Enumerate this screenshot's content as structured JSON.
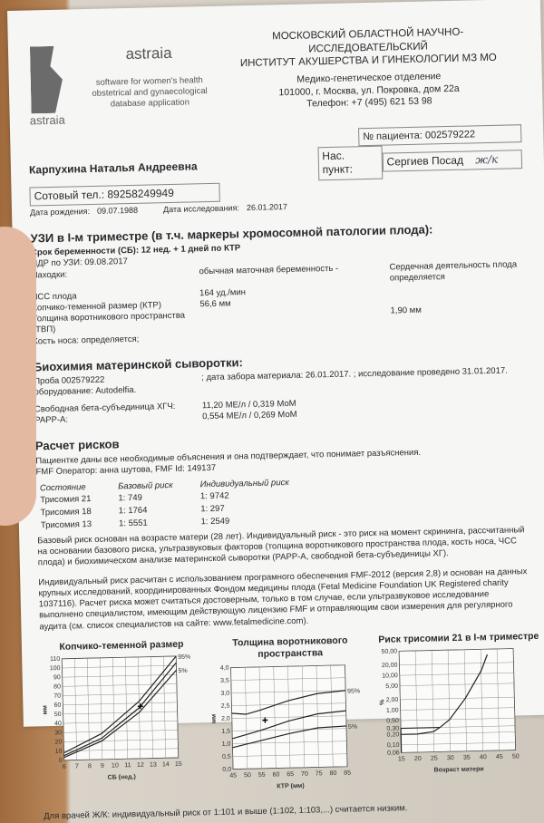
{
  "logo": {
    "name": "astraia",
    "tagline": [
      "software for women's health",
      "obstetrical and gynaecological",
      "database application"
    ],
    "mark_text": "astraia"
  },
  "institute": {
    "line1": "МОСКОВСКИЙ ОБЛАСТНОЙ НАУЧНО-ИССЛЕДОВАТЕЛЬСКИЙ",
    "line2": "ИНСТИТУТ АКУШЕРСТВА И ГИНЕКОЛОГИИ МЗ МО",
    "dept": "Медико-генетическое отделение",
    "address": "101000, г. Москва, ул. Покровка, дом 22а",
    "phone": "Телефон: +7 (495) 621 53 98"
  },
  "patient": {
    "number": "№ пациента: 002579222",
    "name": "Карпухина Наталья Андреевна",
    "city_label": "Нас. пункт:",
    "city": "Сергиев Посад",
    "handwritten": "ж/к",
    "phone": "Сотовый тел.: 89258249949",
    "dob_label": "Дата рождения:",
    "dob": "09.07.1988",
    "exam_label": "Дата исследования:",
    "exam_date": "26.01.2017"
  },
  "us": {
    "title": "УЗИ в I-м триместре (в т.ч. маркеры хромосомной патологии плода):",
    "ga": "Срок беременности (СБ):  12 нед. + 1 дней по КТР",
    "edd": "ПДР по УЗИ: 09.08.2017",
    "rows": [
      {
        "label": "Находки:",
        "value": "обычная маточная беременность -",
        "extra": "Сердечная деятельность плода  определяется"
      },
      {
        "label": "ЧСС плода",
        "value": "164 уд./мин",
        "extra": ""
      },
      {
        "label": "Копчико-теменной размер (КТР)",
        "value": "56,6 мм",
        "extra": ""
      },
      {
        "label": "Толщина воротникового пространства (ТВП)",
        "value": "",
        "extra": "1,90 мм"
      },
      {
        "label": "Кость носа: определяется;",
        "value": "",
        "extra": ""
      }
    ]
  },
  "bio": {
    "title": "Биохимия материнской сыворотки:",
    "sample": "Проба 002579222",
    "dates": "; дата забора материала: 26.01.2017. ; исследование проведено 31.01.2017.",
    "equipment": "оборудование: Autodelfia.",
    "rows": [
      {
        "label": "Свободная бета-субъединица ХГЧ:",
        "value": "11,20 МЕ/л  /  0,319 МоМ"
      },
      {
        "label": "PAPP-A:",
        "value": "0,554 МЕ/л  /  0,269 МоМ"
      }
    ]
  },
  "risk": {
    "title": "Расчет рисков",
    "consent": "Пациентке даны все необходимые объяснения и она подтверждает, что понимает разъяснения.",
    "operator": "FMF Оператор: анна шутова, FMF Id: 149137",
    "headers": [
      "Состояние",
      "Базовый риск",
      "Индивидуальный риск"
    ],
    "rows": [
      [
        "Трисомия 21",
        "1: 749",
        "1: 9742"
      ],
      [
        "Трисомия 18",
        "1: 1764",
        "1: 297"
      ],
      [
        "Трисомия 13",
        "1: 5551",
        "1: 2549"
      ]
    ],
    "note1": "Базовый риск основан на возрасте матери (28 лет). Индивидуальный риск - это риск на момент скрининга, рассчитанный на основании базового риска, ультразвуковых факторов (толщина воротникового пространства плода, кость носа, ЧСС плода) и биохимическом анализе материнской сыворотки (PAPP-A, свободной бета-субъединицы ХГ).",
    "note2": "Индивидуальный риск расчитан с использованием програмного обеспечения FMF-2012 (версия 2,8) и основан на данных крупных исследований, координированных Фондом медицины плода (Fetal Medicine Foundation UK Registered charity 1037116). Расчет риска может считаться достоверным, только в том случае, если ультразвуковое исследование выполнено специалистом, имеющим действующую лицензию FMF и отправляющим свои измерения для регулярного аудита (см. список специалистов на сайте: www.fetalmedicine.com)."
  },
  "footer": "Для врачей Ж/К: индивидуальный риск от 1:101 и выше (1:102, 1:103,...) считается низким.",
  "chart_data": [
    {
      "type": "line",
      "title": "Копчико-теменной размер",
      "xlabel": "СБ (нед.)",
      "ylabel": "мм",
      "xlim": [
        6,
        15
      ],
      "ylim": [
        0,
        110
      ],
      "xticks": [
        6,
        7,
        8,
        9,
        10,
        11,
        12,
        13,
        14,
        15
      ],
      "yticks": [
        0,
        10,
        20,
        30,
        40,
        50,
        60,
        70,
        80,
        90,
        100,
        110
      ],
      "grid": true,
      "series": [
        {
          "name": "95%",
          "x": [
            6,
            9,
            12,
            15
          ],
          "y": [
            8,
            28,
            62,
            112
          ]
        },
        {
          "name": "",
          "x": [
            6,
            9,
            12,
            15
          ],
          "y": [
            5,
            23,
            55,
            103
          ]
        },
        {
          "name": "5%",
          "x": [
            6,
            9,
            12,
            15
          ],
          "y": [
            3,
            20,
            50,
            95
          ]
        }
      ],
      "point": {
        "x": 12.1,
        "y": 56.6
      }
    },
    {
      "type": "line",
      "title": "Толщина воротникового пространства",
      "xlabel": "КТР (мм)",
      "ylabel": "мм",
      "xlim": [
        45,
        85
      ],
      "ylim": [
        0,
        4
      ],
      "xticks": [
        45,
        50,
        55,
        60,
        65,
        70,
        75,
        80,
        85
      ],
      "yticks": [
        "0,0",
        "0,5",
        "1,0",
        "1,5",
        "2,0",
        "2,5",
        "3,0",
        "3,5",
        "4,0"
      ],
      "grid": true,
      "series": [
        {
          "name": "95%",
          "x": [
            45,
            50,
            55,
            65,
            75,
            85
          ],
          "y": [
            2.2,
            2.15,
            2.3,
            2.65,
            2.9,
            3.0
          ]
        },
        {
          "name": "",
          "x": [
            45,
            55,
            65,
            75,
            85
          ],
          "y": [
            1.2,
            1.5,
            1.85,
            2.1,
            2.2
          ]
        },
        {
          "name": "5%",
          "x": [
            45,
            55,
            65,
            75,
            85
          ],
          "y": [
            0.85,
            1.1,
            1.35,
            1.55,
            1.6
          ]
        }
      ],
      "point": {
        "x": 56.6,
        "y": 1.9
      }
    },
    {
      "type": "line",
      "title": "Риск трисомии 21 в I-м триместре",
      "xlabel": "Возраст матери",
      "ylabel": "%",
      "xlim": [
        15,
        50
      ],
      "ylim": [
        0.06,
        50
      ],
      "yscale": "log",
      "xticks": [
        15,
        20,
        25,
        30,
        35,
        40,
        45,
        50
      ],
      "yticks": [
        "0,06",
        "0,10",
        "0,20",
        "0,30",
        "0,50",
        "1,00",
        "2,00",
        "5,00",
        "10,00",
        "20,00",
        "50,00"
      ],
      "grid": true,
      "series": [
        {
          "name": "",
          "x": [
            15,
            20,
            25,
            27,
            30,
            35,
            40,
            42
          ],
          "y": [
            0.2,
            0.2,
            0.23,
            0.3,
            0.5,
            2.0,
            12,
            35
          ]
        }
      ]
    }
  ]
}
